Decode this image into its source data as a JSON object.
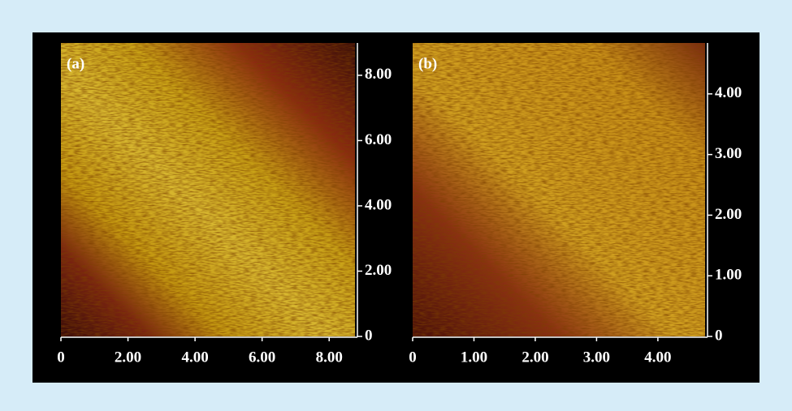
{
  "panels": [
    {
      "label": "(a)",
      "xlim": [
        0,
        8.77
      ],
      "ylim": [
        0,
        8.99
      ],
      "xticks": [
        0,
        {
          "value": 2,
          "label": "2.00"
        },
        {
          "value": 4,
          "label": "4.00"
        },
        {
          "value": 6,
          "label": "6.00"
        },
        {
          "value": 8,
          "label": "8.00"
        }
      ],
      "yticks": [
        0,
        {
          "value": 2,
          "label": "2.00"
        },
        {
          "value": 4,
          "label": "4.00"
        },
        {
          "value": 6,
          "label": "6.00"
        },
        {
          "value": 8,
          "label": "8.00"
        }
      ]
    },
    {
      "label": "(b)",
      "xlim": [
        0,
        4.77
      ],
      "ylim": [
        0,
        4.84
      ],
      "xticks": [
        0,
        {
          "value": 1,
          "label": "1.00"
        },
        {
          "value": 2,
          "label": "2.00"
        },
        {
          "value": 3,
          "label": "3.00"
        },
        {
          "value": 4,
          "label": "4.00"
        }
      ],
      "yticks": [
        0,
        {
          "value": 1,
          "label": "1.00"
        },
        {
          "value": 2,
          "label": "2.00"
        },
        {
          "value": 3,
          "label": "3.00"
        },
        {
          "value": 4,
          "label": "4.00"
        }
      ]
    }
  ]
}
